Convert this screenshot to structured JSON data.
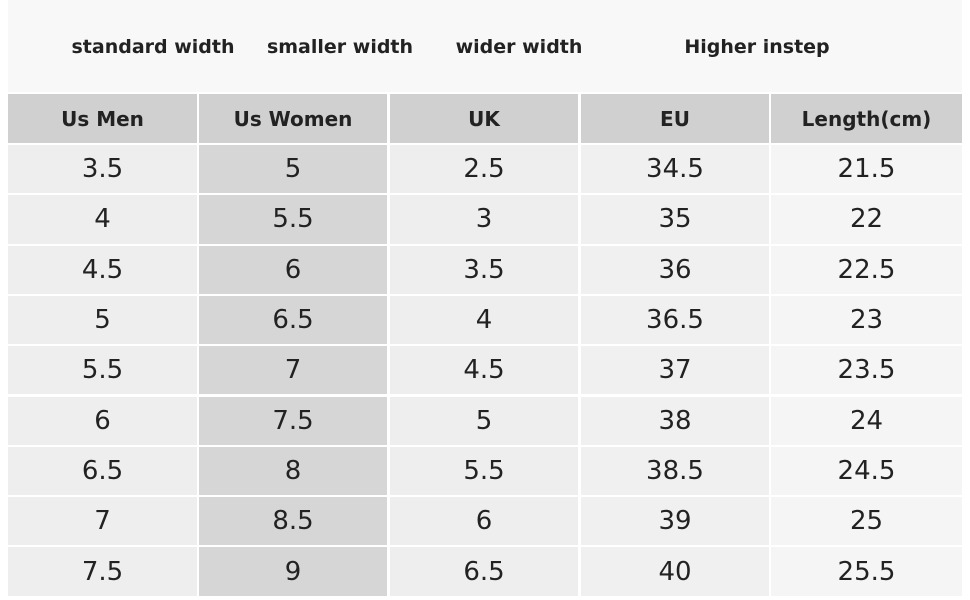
{
  "header": {
    "labels": [
      "standard width",
      "smaller width",
      "wider width",
      "Higher instep"
    ]
  },
  "table": {
    "columns": [
      "Us Men",
      "Us Women",
      "UK",
      "EU",
      "Length(cm)"
    ],
    "rows": [
      [
        "3.5",
        "5",
        "2.5",
        "34.5",
        "21.5"
      ],
      [
        "4",
        "5.5",
        "3",
        "35",
        "22"
      ],
      [
        "4.5",
        "6",
        "3.5",
        "36",
        "22.5"
      ],
      [
        "5",
        "6.5",
        "4",
        "36.5",
        "23"
      ],
      [
        "5.5",
        "7",
        "4.5",
        "37",
        "23.5"
      ],
      [
        "6",
        "7.5",
        "5",
        "38",
        "24"
      ],
      [
        "6.5",
        "8",
        "5.5",
        "38.5",
        "24.5"
      ],
      [
        "7",
        "8.5",
        "6",
        "39",
        "25"
      ],
      [
        "7.5",
        "9",
        "6.5",
        "40",
        "25.5"
      ]
    ]
  }
}
